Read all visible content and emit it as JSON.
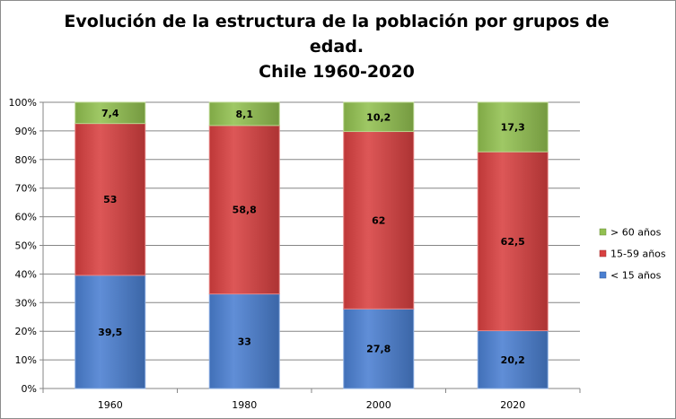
{
  "chart_data": {
    "type": "bar",
    "stacked": true,
    "percent": true,
    "title": "Evolución de la estructura de la población por grupos de edad.",
    "subtitle": "Chile 1960-2020",
    "categories": [
      "1960",
      "1980",
      "2000",
      "2020"
    ],
    "series": [
      {
        "name": "< 15 años",
        "values": [
          39.5,
          33,
          27.8,
          20.2
        ],
        "labels": [
          "39,5",
          "33",
          "27,8",
          "20,2"
        ],
        "color": "#4a7fd1"
      },
      {
        "name": "15-59 años",
        "values": [
          53,
          58.8,
          62,
          62.5
        ],
        "labels": [
          "53",
          "58,8",
          "62",
          "62,5"
        ],
        "color": "#d84040"
      },
      {
        "name": "> 60 años",
        "values": [
          7.4,
          8.1,
          10.2,
          17.3
        ],
        "labels": [
          "7,4",
          "8,1",
          "10,2",
          "17,3"
        ],
        "color": "#92c050"
      }
    ],
    "ylim": [
      0,
      100
    ],
    "yticks": [
      "0%",
      "10%",
      "20%",
      "30%",
      "40%",
      "50%",
      "60%",
      "70%",
      "80%",
      "90%",
      "100%"
    ],
    "grid": true,
    "legend": "right"
  }
}
